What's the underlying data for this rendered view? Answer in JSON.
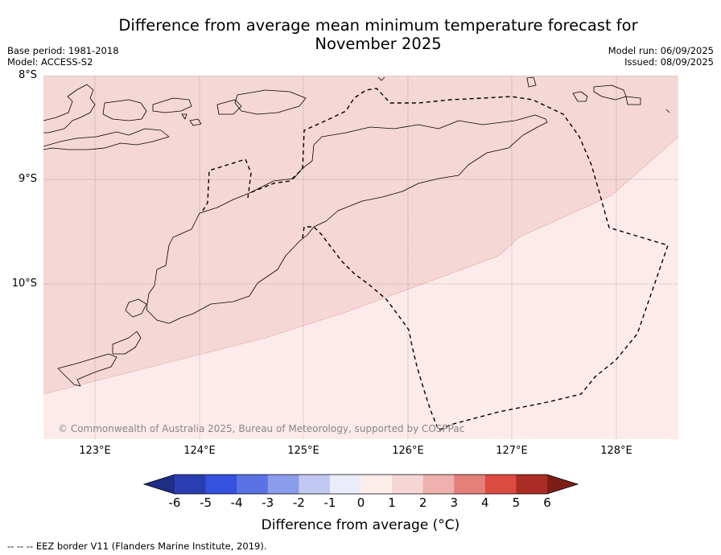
{
  "title": "Difference from average mean minimum temperature forecast for November 2025",
  "base_period": "Base period: 1981-2018",
  "model": "Model: ACCESS-S2",
  "model_run": "Model run: 06/09/2025",
  "issued": "Issued: 08/09/2025",
  "copyright": "© Commonwealth of Australia 2025, Bureau of Meteorology, supported by COSPPac",
  "lat_labels": [
    "8°S",
    "9°S",
    "10°S"
  ],
  "lon_labels": [
    "123°E",
    "124°E",
    "125°E",
    "126°E",
    "127°E",
    "128°E"
  ],
  "colorbar": {
    "title": "Difference from average (°C)",
    "ticks": [
      "-6",
      "-5",
      "-4",
      "-3",
      "-2",
      "-1",
      "0",
      "1",
      "2",
      "3",
      "4",
      "5",
      "6"
    ],
    "colors": [
      "#1f2d85",
      "#2a3db0",
      "#3452dd",
      "#5a72e6",
      "#8b9cec",
      "#c1c8f3",
      "#ebedfb",
      "#fcecea",
      "#f6d6d4",
      "#efb1ad",
      "#e4807a",
      "#dc4b40",
      "#ab2c24",
      "#7e1d18"
    ]
  },
  "regions": {
    "upper_band_class": "1 to 2 °C",
    "lower_band_class": "0 to 1 °C",
    "upper_color": "#f5d7d5",
    "lower_color": "#fcebea"
  },
  "footnote": "-- -- -- EEZ border V11 (Flanders Marine Institute, 2019)."
}
